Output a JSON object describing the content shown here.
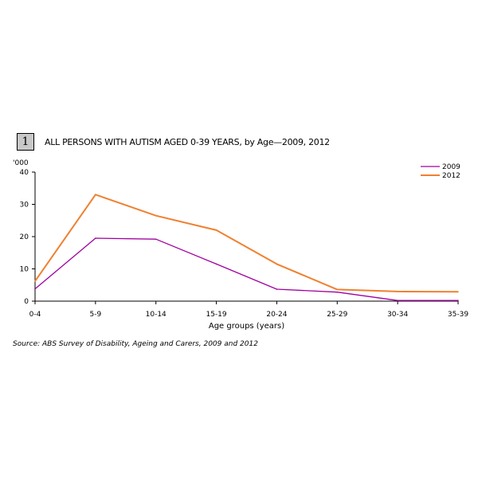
{
  "figure": {
    "number": "1",
    "title": "ALL PERSONS WITH AUTISM AGED 0-39 YEARS, by Age—2009, 2012",
    "source": "Source: ABS Survey of Disability, Ageing and Carers, 2009 and 2012"
  },
  "chart_data": {
    "type": "line",
    "title": "ALL PERSONS WITH AUTISM AGED 0-39 YEARS, by Age—2009, 2012",
    "xlabel": "Age groups (years)",
    "ylabel": "'000",
    "ylim": [
      0,
      40
    ],
    "yticks": [
      "0",
      "10",
      "20",
      "30",
      "40"
    ],
    "categories": [
      "0-4",
      "5-9",
      "10-14",
      "15-19",
      "20-24",
      "25-29",
      "30-34",
      "35-39"
    ],
    "series": [
      {
        "name": "2009",
        "color": "#a000a0",
        "values": [
          3.8,
          19.5,
          19.2,
          11.5,
          3.7,
          2.8,
          0.2,
          0.2
        ]
      },
      {
        "name": "2012",
        "color": "#f08030",
        "values": [
          6.2,
          33.0,
          26.5,
          22.0,
          11.5,
          3.6,
          3.0,
          2.9
        ]
      }
    ],
    "legend": "top-right",
    "grid": false
  }
}
